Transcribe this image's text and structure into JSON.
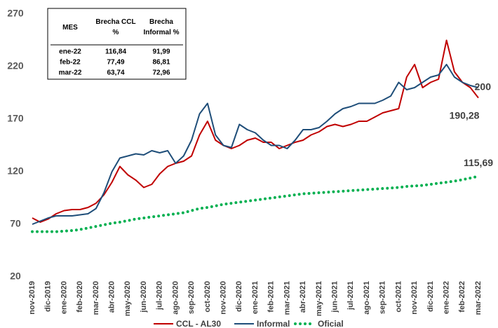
{
  "chart_data": {
    "type": "line",
    "categories": [
      "nov-2019",
      null,
      "dic-2019",
      null,
      "ene-2020",
      null,
      "feb-2020",
      null,
      "mar-2020",
      null,
      "abr-2020",
      null,
      "may-2020",
      null,
      "jun-2020",
      null,
      "jul-2020",
      null,
      "ago-2020",
      null,
      "sep-2020",
      null,
      "oct-2020",
      null,
      "nov-2020",
      null,
      "dic-2020",
      null,
      "ene-2021",
      null,
      "feb-2021",
      null,
      "mar-2021",
      null,
      "abr-2021",
      null,
      "may-2021",
      null,
      "jun-2021",
      null,
      "jul-2021",
      null,
      "ago-2021",
      null,
      "sep-2021",
      null,
      "oct-2021",
      null,
      "nov-2021",
      null,
      "dic-2021",
      null,
      "ene-2022",
      null,
      "feb-2022",
      null,
      "mar-2022"
    ],
    "series": [
      {
        "name": "CCL - AL30",
        "color": "#c00000",
        "style": "solid",
        "values": [
          76,
          72,
          75,
          80,
          83,
          84,
          84,
          86,
          90,
          98,
          110,
          125,
          117,
          112,
          105,
          108,
          118,
          125,
          128,
          130,
          135,
          155,
          168,
          150,
          145,
          142,
          145,
          150,
          152,
          148,
          148,
          142,
          145,
          148,
          150,
          155,
          158,
          163,
          165,
          163,
          165,
          168,
          168,
          172,
          176,
          178,
          180,
          210,
          222,
          200,
          205,
          208,
          245,
          215,
          205,
          200,
          190.28
        ],
        "value_labels": [
          null,
          null,
          null,
          null,
          null,
          null,
          null,
          null,
          null,
          null,
          null,
          null,
          null,
          null,
          null,
          null,
          null,
          null,
          null,
          null,
          null,
          null,
          null,
          null,
          null,
          null,
          null,
          null,
          null,
          null,
          null,
          null,
          null,
          null,
          null,
          null,
          null,
          null,
          null,
          null,
          null,
          null,
          null,
          null,
          null,
          null,
          null,
          null,
          null,
          null,
          null,
          null,
          null,
          null,
          null,
          null,
          "190,28"
        ]
      },
      {
        "name": "Informal",
        "color": "#1f4e79",
        "style": "solid",
        "values": [
          70,
          73,
          76,
          78,
          78,
          78,
          79,
          80,
          85,
          100,
          120,
          133,
          135,
          137,
          136,
          140,
          138,
          140,
          128,
          135,
          150,
          175,
          185,
          155,
          145,
          143,
          165,
          160,
          157,
          150,
          145,
          145,
          142,
          150,
          160,
          160,
          162,
          168,
          175,
          180,
          182,
          185,
          185,
          185,
          188,
          192,
          205,
          198,
          200,
          205,
          210,
          212,
          222,
          210,
          205,
          202,
          200
        ],
        "value_labels": [
          null,
          null,
          null,
          null,
          null,
          null,
          null,
          null,
          null,
          null,
          null,
          null,
          null,
          null,
          null,
          null,
          null,
          null,
          null,
          null,
          null,
          null,
          null,
          null,
          null,
          null,
          null,
          null,
          null,
          null,
          null,
          null,
          null,
          null,
          null,
          null,
          null,
          null,
          null,
          null,
          null,
          null,
          null,
          null,
          null,
          null,
          null,
          null,
          null,
          null,
          null,
          null,
          null,
          null,
          null,
          null,
          "200"
        ]
      },
      {
        "name": "Oficial",
        "color": "#00b050",
        "style": "dotted",
        "values": [
          63,
          63,
          63,
          63,
          63.5,
          64,
          65,
          66.5,
          68,
          69.5,
          71,
          72,
          73.5,
          75,
          76,
          77,
          78,
          79,
          80,
          81,
          83,
          85,
          86,
          87.5,
          89,
          90,
          91,
          92,
          93,
          94,
          95,
          96,
          97,
          98,
          99,
          99.5,
          100,
          100.5,
          101,
          101.5,
          102,
          102.5,
          103,
          103.5,
          104,
          104.5,
          105,
          106,
          106.5,
          107,
          108,
          109,
          110,
          111,
          112.5,
          114,
          115.69
        ],
        "value_labels": [
          null,
          null,
          null,
          null,
          null,
          null,
          null,
          null,
          null,
          null,
          null,
          null,
          null,
          null,
          null,
          null,
          null,
          null,
          null,
          null,
          null,
          null,
          null,
          null,
          null,
          null,
          null,
          null,
          null,
          null,
          null,
          null,
          null,
          null,
          null,
          null,
          null,
          null,
          null,
          null,
          null,
          null,
          null,
          null,
          null,
          null,
          null,
          null,
          null,
          null,
          null,
          null,
          null,
          null,
          null,
          null,
          "115,69"
        ]
      }
    ],
    "ylim": [
      20,
      270
    ],
    "yticks": [
      20,
      70,
      120,
      170,
      220,
      270
    ],
    "grid": false,
    "legend": "bottom",
    "table": {
      "header": [
        "MES",
        "Brecha CCL %",
        "Brecha Informal %"
      ],
      "rows": [
        [
          "ene-22",
          "116,84",
          "91,99"
        ],
        [
          "feb-22",
          "77,49",
          "86,81"
        ],
        [
          "mar-22",
          "63,74",
          "72,96"
        ]
      ]
    }
  }
}
